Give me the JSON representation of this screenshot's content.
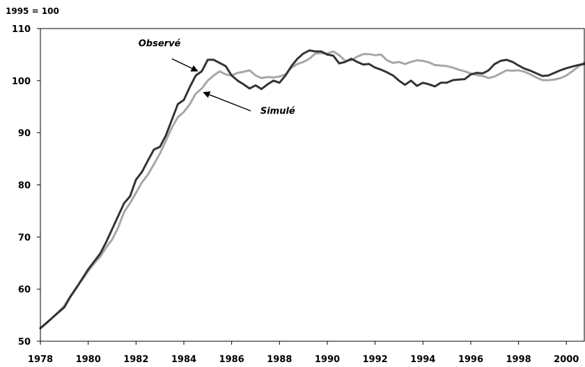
{
  "chart_data": {
    "type": "line",
    "unit_label": "1995 = 100",
    "x_ticks": [
      "1978",
      "1980",
      "1982",
      "1984",
      "1986",
      "1988",
      "1990",
      "1992",
      "1994",
      "1996",
      "1998",
      "2000"
    ],
    "y_ticks": [
      "110",
      "100",
      "90",
      "80",
      "70",
      "60",
      "50"
    ],
    "xlim": [
      1978,
      2000.75
    ],
    "ylim": [
      50,
      110
    ],
    "grid": false,
    "series": [
      {
        "name": "Observé",
        "color": "#333333",
        "points": [
          [
            1978.0,
            52.5
          ],
          [
            1978.25,
            53.5
          ],
          [
            1978.5,
            54.5
          ],
          [
            1978.75,
            55.5
          ],
          [
            1979.0,
            56.5
          ],
          [
            1979.25,
            58.5
          ],
          [
            1979.5,
            60.2
          ],
          [
            1979.75,
            62.0
          ],
          [
            1980.0,
            63.8
          ],
          [
            1980.25,
            65.3
          ],
          [
            1980.5,
            66.8
          ],
          [
            1980.75,
            69.0
          ],
          [
            1981.0,
            71.5
          ],
          [
            1981.25,
            74.0
          ],
          [
            1981.5,
            76.5
          ],
          [
            1981.75,
            77.8
          ],
          [
            1982.0,
            81.0
          ],
          [
            1982.25,
            82.5
          ],
          [
            1982.5,
            84.7
          ],
          [
            1982.75,
            86.8
          ],
          [
            1983.0,
            87.3
          ],
          [
            1983.25,
            89.5
          ],
          [
            1983.5,
            92.5
          ],
          [
            1983.75,
            95.5
          ],
          [
            1984.0,
            96.3
          ],
          [
            1984.25,
            98.8
          ],
          [
            1984.5,
            101.0
          ],
          [
            1984.75,
            101.8
          ],
          [
            1985.0,
            104.0
          ],
          [
            1985.25,
            104.0
          ],
          [
            1985.5,
            103.4
          ],
          [
            1985.75,
            102.8
          ],
          [
            1986.0,
            101.0
          ],
          [
            1986.25,
            100.0
          ],
          [
            1986.5,
            99.3
          ],
          [
            1986.75,
            98.5
          ],
          [
            1987.0,
            99.1
          ],
          [
            1987.25,
            98.4
          ],
          [
            1987.5,
            99.3
          ],
          [
            1987.75,
            100.0
          ],
          [
            1988.0,
            99.6
          ],
          [
            1988.25,
            101.0
          ],
          [
            1988.5,
            102.8
          ],
          [
            1988.75,
            104.2
          ],
          [
            1989.0,
            105.2
          ],
          [
            1989.25,
            105.8
          ],
          [
            1989.5,
            105.6
          ],
          [
            1989.75,
            105.6
          ],
          [
            1990.0,
            105.0
          ],
          [
            1990.25,
            104.8
          ],
          [
            1990.5,
            103.3
          ],
          [
            1990.75,
            103.6
          ],
          [
            1991.0,
            104.2
          ],
          [
            1991.25,
            103.6
          ],
          [
            1991.5,
            103.1
          ],
          [
            1991.75,
            103.2
          ],
          [
            1992.0,
            102.5
          ],
          [
            1992.25,
            102.1
          ],
          [
            1992.5,
            101.6
          ],
          [
            1992.75,
            101.0
          ],
          [
            1993.0,
            100.0
          ],
          [
            1993.25,
            99.2
          ],
          [
            1993.5,
            100.0
          ],
          [
            1993.75,
            99.0
          ],
          [
            1994.0,
            99.6
          ],
          [
            1994.25,
            99.3
          ],
          [
            1994.5,
            98.9
          ],
          [
            1994.75,
            99.6
          ],
          [
            1995.0,
            99.6
          ],
          [
            1995.25,
            100.1
          ],
          [
            1995.5,
            100.2
          ],
          [
            1995.75,
            100.3
          ],
          [
            1996.0,
            101.2
          ],
          [
            1996.25,
            101.5
          ],
          [
            1996.5,
            101.4
          ],
          [
            1996.75,
            102.0
          ],
          [
            1997.0,
            103.2
          ],
          [
            1997.25,
            103.8
          ],
          [
            1997.5,
            104.0
          ],
          [
            1997.75,
            103.6
          ],
          [
            1998.0,
            102.9
          ],
          [
            1998.25,
            102.3
          ],
          [
            1998.5,
            101.9
          ],
          [
            1998.75,
            101.4
          ],
          [
            1999.0,
            100.9
          ],
          [
            1999.25,
            101.0
          ],
          [
            1999.5,
            101.5
          ],
          [
            1999.75,
            102.0
          ],
          [
            2000.0,
            102.4
          ],
          [
            2000.25,
            102.7
          ],
          [
            2000.5,
            103.0
          ],
          [
            2000.75,
            103.2
          ]
        ]
      },
      {
        "name": "Simulé",
        "color": "#a6a6a6",
        "points": [
          [
            1978.0,
            52.5
          ],
          [
            1978.25,
            53.4
          ],
          [
            1978.5,
            54.5
          ],
          [
            1978.75,
            55.6
          ],
          [
            1979.0,
            56.8
          ],
          [
            1979.25,
            58.6
          ],
          [
            1979.5,
            60.3
          ],
          [
            1979.75,
            61.8
          ],
          [
            1980.0,
            63.5
          ],
          [
            1980.25,
            64.9
          ],
          [
            1980.5,
            66.2
          ],
          [
            1980.75,
            68.0
          ],
          [
            1981.0,
            69.5
          ],
          [
            1981.25,
            71.8
          ],
          [
            1981.5,
            74.8
          ],
          [
            1981.75,
            76.5
          ],
          [
            1982.0,
            78.5
          ],
          [
            1982.25,
            80.5
          ],
          [
            1982.5,
            82.0
          ],
          [
            1982.75,
            84.0
          ],
          [
            1983.0,
            86.0
          ],
          [
            1983.25,
            88.5
          ],
          [
            1983.5,
            91.0
          ],
          [
            1983.75,
            93.0
          ],
          [
            1984.0,
            94.0
          ],
          [
            1984.25,
            95.5
          ],
          [
            1984.5,
            97.5
          ],
          [
            1984.75,
            98.5
          ],
          [
            1985.0,
            100.0
          ],
          [
            1985.25,
            101.0
          ],
          [
            1985.5,
            101.8
          ],
          [
            1985.75,
            101.2
          ],
          [
            1986.0,
            101.0
          ],
          [
            1986.25,
            101.5
          ],
          [
            1986.5,
            101.7
          ],
          [
            1986.75,
            102.0
          ],
          [
            1987.0,
            101.0
          ],
          [
            1987.25,
            100.5
          ],
          [
            1987.5,
            100.7
          ],
          [
            1987.75,
            100.6
          ],
          [
            1988.0,
            100.8
          ],
          [
            1988.25,
            101.2
          ],
          [
            1988.5,
            102.5
          ],
          [
            1988.75,
            103.2
          ],
          [
            1989.0,
            103.6
          ],
          [
            1989.25,
            104.2
          ],
          [
            1989.5,
            105.2
          ],
          [
            1989.75,
            105.3
          ],
          [
            1990.0,
            105.2
          ],
          [
            1990.25,
            105.6
          ],
          [
            1990.5,
            104.9
          ],
          [
            1990.75,
            103.8
          ],
          [
            1991.0,
            103.9
          ],
          [
            1991.25,
            104.6
          ],
          [
            1991.5,
            105.1
          ],
          [
            1991.75,
            105.1
          ],
          [
            1992.0,
            104.9
          ],
          [
            1992.25,
            105.0
          ],
          [
            1992.5,
            103.9
          ],
          [
            1992.75,
            103.4
          ],
          [
            1993.0,
            103.6
          ],
          [
            1993.25,
            103.2
          ],
          [
            1993.5,
            103.6
          ],
          [
            1993.75,
            103.9
          ],
          [
            1994.0,
            103.8
          ],
          [
            1994.25,
            103.5
          ],
          [
            1994.5,
            103.0
          ],
          [
            1994.75,
            102.9
          ],
          [
            1995.0,
            102.8
          ],
          [
            1995.25,
            102.5
          ],
          [
            1995.5,
            102.1
          ],
          [
            1995.75,
            101.8
          ],
          [
            1996.0,
            101.4
          ],
          [
            1996.25,
            101.1
          ],
          [
            1996.5,
            100.9
          ],
          [
            1996.75,
            100.5
          ],
          [
            1997.0,
            100.8
          ],
          [
            1997.25,
            101.4
          ],
          [
            1997.5,
            102.0
          ],
          [
            1997.75,
            101.9
          ],
          [
            1998.0,
            102.0
          ],
          [
            1998.25,
            101.7
          ],
          [
            1998.5,
            101.2
          ],
          [
            1998.75,
            100.6
          ],
          [
            1999.0,
            100.1
          ],
          [
            1999.25,
            100.1
          ],
          [
            1999.5,
            100.2
          ],
          [
            1999.75,
            100.5
          ],
          [
            2000.0,
            101.0
          ],
          [
            2000.25,
            101.8
          ],
          [
            2000.5,
            102.7
          ],
          [
            2000.75,
            103.5
          ]
        ]
      }
    ],
    "annotations": [
      {
        "series": "Observé",
        "text": "Observé",
        "label_at": [
          1982.1,
          106.6
        ],
        "arrow_from": [
          1983.5,
          104.2
        ],
        "arrow_to": [
          1984.55,
          101.9
        ]
      },
      {
        "series": "Simulé",
        "text": "Simulé",
        "label_at": [
          1987.2,
          93.6
        ],
        "arrow_from": [
          1986.8,
          94.2
        ],
        "arrow_to": [
          1984.85,
          97.7
        ]
      }
    ]
  }
}
